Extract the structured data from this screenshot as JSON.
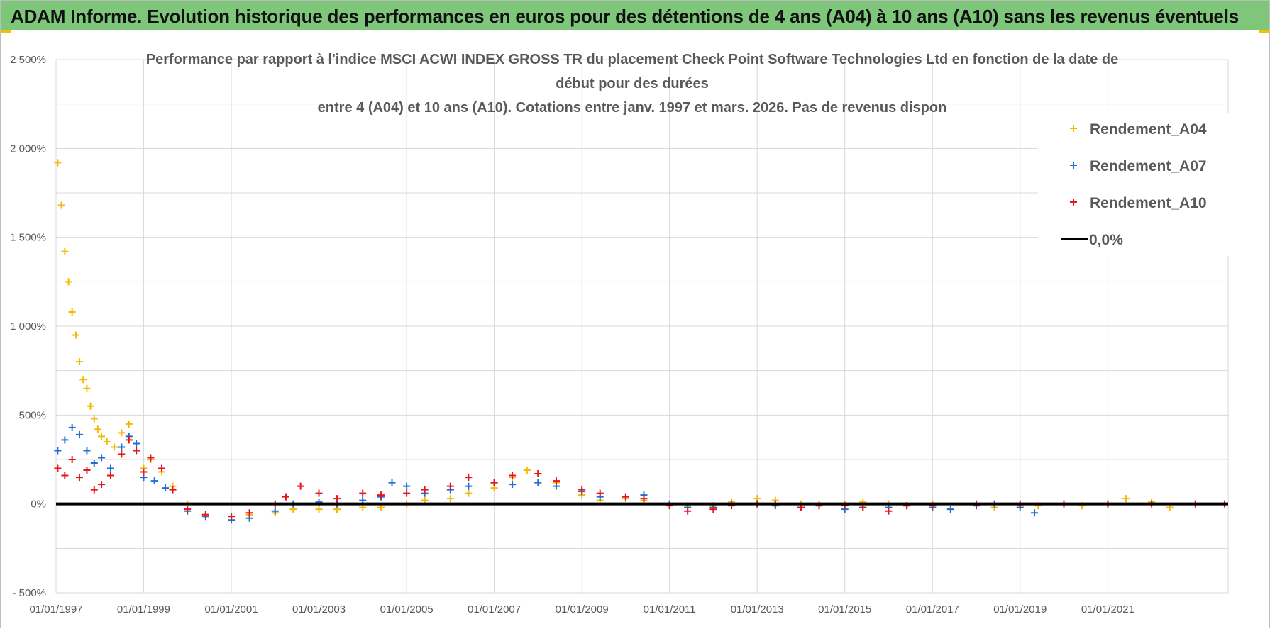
{
  "banner": {
    "title": "ADAM Informe. Evolution historique des performances en euros pour des détentions de 4 ans (A04) à 10 ans (A10) sans les revenus éventuels"
  },
  "colors": {
    "banner_bg": "#7dc67a",
    "A04": "#f5b800",
    "A07": "#1f6fd1",
    "A10": "#e8141b",
    "zero": "#000000",
    "grid": "#d9d9d9"
  },
  "chart_data": {
    "type": "scatter",
    "title_lines": [
      "Performance par rapport à l'indice MSCI ACWI INDEX GROSS TR  du placement Check Point Software Technologies Ltd en fonction de la date de",
      "début pour des durées",
      "entre 4 (A04) et 10 ans (A10). Cotations entre janv. 1997 et mars. 2026. Pas de revenus dispon"
    ],
    "xlabel": "",
    "ylabel": "",
    "x_range": [
      "1997-01-01",
      "2023-10-01"
    ],
    "ylim": [
      -5,
      25
    ],
    "y_ticks": [
      {
        "value": 25,
        "label": "2 500%"
      },
      {
        "value": 20,
        "label": "2 000%"
      },
      {
        "value": 15,
        "label": "1 500%"
      },
      {
        "value": 10,
        "label": "1 000%"
      },
      {
        "value": 5,
        "label": "500%"
      },
      {
        "value": 0,
        "label": "0%"
      },
      {
        "value": -5,
        "label": "- 500%"
      }
    ],
    "x_ticks": [
      {
        "date": "1997-01-01",
        "label": "01/01/1997"
      },
      {
        "date": "1999-01-01",
        "label": "01/01/1999"
      },
      {
        "date": "2001-01-01",
        "label": "01/01/2001"
      },
      {
        "date": "2003-01-01",
        "label": "01/01/2003"
      },
      {
        "date": "2005-01-01",
        "label": "01/01/2005"
      },
      {
        "date": "2007-01-01",
        "label": "01/01/2007"
      },
      {
        "date": "2009-01-01",
        "label": "01/01/2009"
      },
      {
        "date": "2011-01-01",
        "label": "01/01/2011"
      },
      {
        "date": "2013-01-01",
        "label": "01/01/2013"
      },
      {
        "date": "2015-01-01",
        "label": "01/01/2015"
      },
      {
        "date": "2017-01-01",
        "label": "01/01/2017"
      },
      {
        "date": "2019-01-01",
        "label": "01/01/2019"
      },
      {
        "date": "2021-01-01",
        "label": "01/01/2021"
      }
    ],
    "grid": true,
    "legend_position": "top-right",
    "series": [
      {
        "name": "Rendement_A04",
        "marker": "plus",
        "points": [
          [
            "1997-01-15",
            19.2
          ],
          [
            "1997-02-15",
            16.8
          ],
          [
            "1997-03-15",
            14.2
          ],
          [
            "1997-04-15",
            12.5
          ],
          [
            "1997-05-15",
            10.8
          ],
          [
            "1997-06-15",
            9.5
          ],
          [
            "1997-07-15",
            8.0
          ],
          [
            "1997-08-15",
            7.0
          ],
          [
            "1997-09-15",
            6.5
          ],
          [
            "1997-10-15",
            5.5
          ],
          [
            "1997-11-15",
            4.8
          ],
          [
            "1997-12-15",
            4.2
          ],
          [
            "1998-01-15",
            3.8
          ],
          [
            "1998-03-01",
            3.5
          ],
          [
            "1998-05-01",
            3.2
          ],
          [
            "1998-07-01",
            4.0
          ],
          [
            "1998-09-01",
            4.5
          ],
          [
            "1998-11-01",
            3.0
          ],
          [
            "1999-01-01",
            2.0
          ],
          [
            "1999-03-01",
            2.5
          ],
          [
            "1999-06-01",
            1.8
          ],
          [
            "1999-09-01",
            1.0
          ],
          [
            "2000-01-01",
            0.0
          ],
          [
            "2000-06-01",
            -0.6
          ],
          [
            "2001-01-01",
            -0.7
          ],
          [
            "2001-06-01",
            -0.6
          ],
          [
            "2002-01-01",
            -0.5
          ],
          [
            "2002-06-01",
            -0.3
          ],
          [
            "2003-01-01",
            -0.3
          ],
          [
            "2003-06-01",
            -0.3
          ],
          [
            "2004-01-01",
            -0.2
          ],
          [
            "2004-06-01",
            -0.2
          ],
          [
            "2005-01-01",
            0.0
          ],
          [
            "2005-06-01",
            0.2
          ],
          [
            "2006-01-01",
            0.3
          ],
          [
            "2006-06-01",
            0.6
          ],
          [
            "2007-01-01",
            0.9
          ],
          [
            "2007-06-01",
            1.5
          ],
          [
            "2007-10-01",
            1.9
          ],
          [
            "2008-01-01",
            1.7
          ],
          [
            "2008-06-01",
            1.2
          ],
          [
            "2009-01-01",
            0.5
          ],
          [
            "2009-06-01",
            0.2
          ],
          [
            "2010-01-01",
            0.3
          ],
          [
            "2010-06-01",
            0.2
          ],
          [
            "2011-01-01",
            0.0
          ],
          [
            "2011-06-01",
            -0.1
          ],
          [
            "2012-01-01",
            -0.1
          ],
          [
            "2012-06-01",
            0.1
          ],
          [
            "2013-01-01",
            0.3
          ],
          [
            "2013-06-01",
            0.2
          ],
          [
            "2014-01-01",
            0.0
          ],
          [
            "2014-06-01",
            0.0
          ],
          [
            "2015-01-01",
            0.0
          ],
          [
            "2015-06-01",
            0.1
          ],
          [
            "2016-01-01",
            0.0
          ],
          [
            "2016-06-01",
            -0.1
          ],
          [
            "2017-01-01",
            0.0
          ],
          [
            "2017-06-01",
            -0.3
          ],
          [
            "2018-01-01",
            -0.1
          ],
          [
            "2018-06-01",
            -0.2
          ],
          [
            "2019-01-01",
            -0.1
          ],
          [
            "2019-06-01",
            -0.1
          ],
          [
            "2020-01-01",
            0.0
          ],
          [
            "2020-06-01",
            -0.1
          ],
          [
            "2021-01-01",
            0.0
          ],
          [
            "2021-06-01",
            0.3
          ],
          [
            "2022-01-01",
            0.1
          ],
          [
            "2022-06-01",
            -0.2
          ]
        ]
      },
      {
        "name": "Rendement_A07",
        "marker": "plus",
        "points": [
          [
            "1997-01-15",
            3.0
          ],
          [
            "1997-03-15",
            3.6
          ],
          [
            "1997-05-15",
            4.3
          ],
          [
            "1997-07-15",
            3.9
          ],
          [
            "1997-09-15",
            3.0
          ],
          [
            "1997-11-15",
            2.3
          ],
          [
            "1998-01-15",
            2.6
          ],
          [
            "1998-04-01",
            2.0
          ],
          [
            "1998-07-01",
            3.2
          ],
          [
            "1998-09-01",
            3.8
          ],
          [
            "1998-11-01",
            3.4
          ],
          [
            "1999-01-01",
            1.5
          ],
          [
            "1999-04-01",
            1.3
          ],
          [
            "1999-07-01",
            0.9
          ],
          [
            "2000-01-01",
            -0.4
          ],
          [
            "2000-06-01",
            -0.7
          ],
          [
            "2001-01-01",
            -0.9
          ],
          [
            "2001-06-01",
            -0.8
          ],
          [
            "2002-01-01",
            -0.4
          ],
          [
            "2002-06-01",
            0.0
          ],
          [
            "2003-01-01",
            0.1
          ],
          [
            "2003-06-01",
            0.0
          ],
          [
            "2004-01-01",
            0.2
          ],
          [
            "2004-06-01",
            0.4
          ],
          [
            "2004-09-01",
            1.2
          ],
          [
            "2005-01-01",
            1.0
          ],
          [
            "2005-06-01",
            0.6
          ],
          [
            "2006-01-01",
            0.8
          ],
          [
            "2006-06-01",
            1.0
          ],
          [
            "2007-01-01",
            1.2
          ],
          [
            "2007-06-01",
            1.1
          ],
          [
            "2008-01-01",
            1.2
          ],
          [
            "2008-06-01",
            1.0
          ],
          [
            "2009-01-01",
            0.7
          ],
          [
            "2009-06-01",
            0.4
          ],
          [
            "2010-01-01",
            0.4
          ],
          [
            "2010-06-01",
            0.5
          ],
          [
            "2011-01-01",
            0.0
          ],
          [
            "2011-06-01",
            -0.2
          ],
          [
            "2012-01-01",
            -0.2
          ],
          [
            "2012-06-01",
            0.0
          ],
          [
            "2013-01-01",
            0.0
          ],
          [
            "2013-06-01",
            -0.1
          ],
          [
            "2014-01-01",
            -0.2
          ],
          [
            "2014-06-01",
            -0.1
          ],
          [
            "2015-01-01",
            -0.3
          ],
          [
            "2015-06-01",
            -0.2
          ],
          [
            "2016-01-01",
            -0.2
          ],
          [
            "2016-06-01",
            -0.1
          ],
          [
            "2017-01-01",
            -0.2
          ],
          [
            "2017-06-01",
            -0.3
          ],
          [
            "2018-01-01",
            -0.1
          ],
          [
            "2018-06-01",
            0.0
          ],
          [
            "2019-01-01",
            -0.2
          ],
          [
            "2019-05-01",
            -0.5
          ]
        ]
      },
      {
        "name": "Rendement_A10",
        "marker": "plus",
        "points": [
          [
            "1997-01-15",
            2.0
          ],
          [
            "1997-03-15",
            1.6
          ],
          [
            "1997-05-15",
            2.5
          ],
          [
            "1997-07-15",
            1.5
          ],
          [
            "1997-09-15",
            1.9
          ],
          [
            "1997-11-15",
            0.8
          ],
          [
            "1998-01-15",
            1.1
          ],
          [
            "1998-04-01",
            1.6
          ],
          [
            "1998-07-01",
            2.8
          ],
          [
            "1998-09-01",
            3.6
          ],
          [
            "1998-11-01",
            3.0
          ],
          [
            "1999-01-01",
            1.8
          ],
          [
            "1999-03-01",
            2.6
          ],
          [
            "1999-06-01",
            2.0
          ],
          [
            "1999-09-01",
            0.8
          ],
          [
            "2000-01-01",
            -0.3
          ],
          [
            "2000-06-01",
            -0.6
          ],
          [
            "2001-01-01",
            -0.7
          ],
          [
            "2001-06-01",
            -0.5
          ],
          [
            "2002-01-01",
            0.0
          ],
          [
            "2002-04-01",
            0.4
          ],
          [
            "2002-08-01",
            1.0
          ],
          [
            "2003-01-01",
            0.6
          ],
          [
            "2003-06-01",
            0.3
          ],
          [
            "2004-01-01",
            0.6
          ],
          [
            "2004-06-01",
            0.5
          ],
          [
            "2005-01-01",
            0.6
          ],
          [
            "2005-06-01",
            0.8
          ],
          [
            "2006-01-01",
            1.0
          ],
          [
            "2006-06-01",
            1.5
          ],
          [
            "2007-01-01",
            1.2
          ],
          [
            "2007-06-01",
            1.6
          ],
          [
            "2008-01-01",
            1.7
          ],
          [
            "2008-06-01",
            1.3
          ],
          [
            "2009-01-01",
            0.8
          ],
          [
            "2009-06-01",
            0.6
          ],
          [
            "2010-01-01",
            0.4
          ],
          [
            "2010-06-01",
            0.3
          ],
          [
            "2011-01-01",
            -0.1
          ],
          [
            "2011-06-01",
            -0.4
          ],
          [
            "2012-01-01",
            -0.3
          ],
          [
            "2012-06-01",
            -0.1
          ],
          [
            "2013-01-01",
            0.0
          ],
          [
            "2013-06-01",
            0.0
          ],
          [
            "2014-01-01",
            -0.2
          ],
          [
            "2014-06-01",
            -0.1
          ],
          [
            "2015-01-01",
            -0.1
          ],
          [
            "2015-06-01",
            -0.2
          ],
          [
            "2016-01-01",
            -0.4
          ],
          [
            "2016-06-01",
            -0.1
          ],
          [
            "2017-01-01",
            -0.1
          ],
          [
            "2018-01-01",
            0.0
          ],
          [
            "2019-01-01",
            0.0
          ],
          [
            "2020-01-01",
            0.0
          ],
          [
            "2021-01-01",
            0.0
          ],
          [
            "2022-01-01",
            0.0
          ],
          [
            "2023-01-01",
            0.0
          ],
          [
            "2023-09-01",
            0.0
          ]
        ]
      },
      {
        "name": "0,0%",
        "marker": "line",
        "points": [
          [
            "1997-01-01",
            0
          ],
          [
            "2023-10-01",
            0
          ]
        ]
      }
    ]
  }
}
